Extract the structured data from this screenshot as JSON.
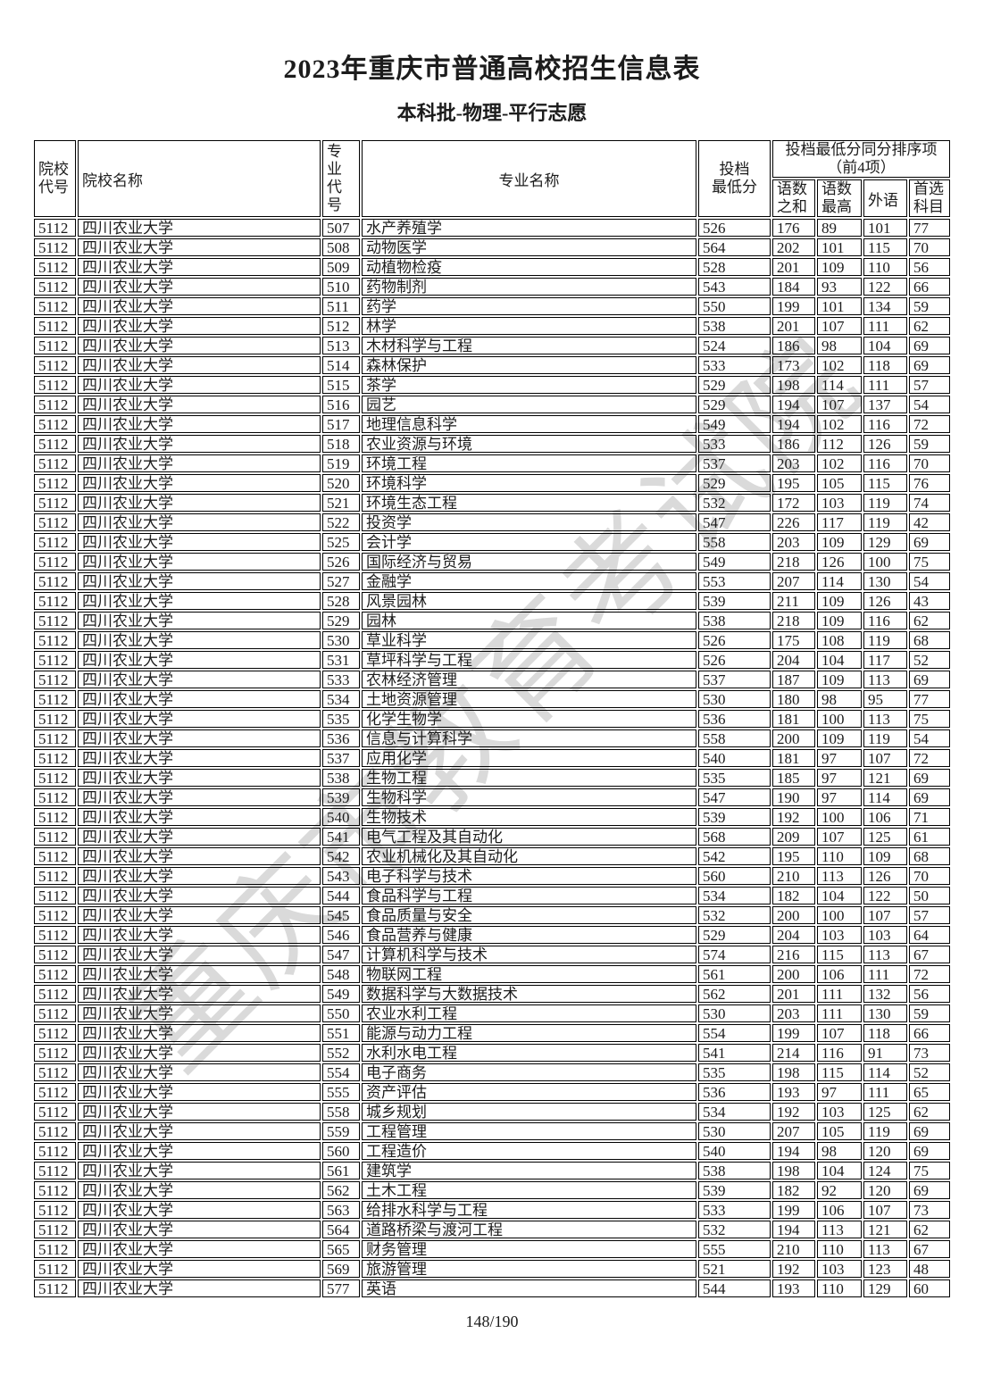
{
  "page": {
    "title": "2023年重庆市普通高校招生信息表",
    "subtitle": "本科批-物理-平行志愿",
    "watermark": "重庆市教育考试院",
    "page_number": "148/190",
    "text_color": "#1c1c1c",
    "border_color": "#000000",
    "watermark_color": "#bcbcbc"
  },
  "table": {
    "headers": {
      "college_code": "院校\n代号",
      "college_name": "院校名称",
      "major_code": "专业\n代号",
      "major_name": "专业名称",
      "min_score": "投档\n最低分",
      "tiebreak_group": "投档最低分同分排序项\n（前4项）",
      "chinese_math_sum": "语数\n之和",
      "chinese_math_max": "语数\n最高",
      "foreign_language": "外语",
      "first_subject": "首选\n科目"
    },
    "rows": [
      [
        "5112",
        "四川农业大学",
        "507",
        "水产养殖学",
        "526",
        "176",
        "89",
        "101",
        "77"
      ],
      [
        "5112",
        "四川农业大学",
        "508",
        "动物医学",
        "564",
        "202",
        "101",
        "115",
        "70"
      ],
      [
        "5112",
        "四川农业大学",
        "509",
        "动植物检疫",
        "528",
        "201",
        "109",
        "110",
        "56"
      ],
      [
        "5112",
        "四川农业大学",
        "510",
        "药物制剂",
        "543",
        "184",
        "93",
        "122",
        "66"
      ],
      [
        "5112",
        "四川农业大学",
        "511",
        "药学",
        "550",
        "199",
        "101",
        "134",
        "59"
      ],
      [
        "5112",
        "四川农业大学",
        "512",
        "林学",
        "538",
        "201",
        "107",
        "111",
        "62"
      ],
      [
        "5112",
        "四川农业大学",
        "513",
        "木材科学与工程",
        "524",
        "186",
        "98",
        "104",
        "69"
      ],
      [
        "5112",
        "四川农业大学",
        "514",
        "森林保护",
        "533",
        "173",
        "102",
        "118",
        "69"
      ],
      [
        "5112",
        "四川农业大学",
        "515",
        "茶学",
        "529",
        "198",
        "114",
        "111",
        "57"
      ],
      [
        "5112",
        "四川农业大学",
        "516",
        "园艺",
        "529",
        "194",
        "107",
        "137",
        "54"
      ],
      [
        "5112",
        "四川农业大学",
        "517",
        "地理信息科学",
        "549",
        "194",
        "102",
        "116",
        "72"
      ],
      [
        "5112",
        "四川农业大学",
        "518",
        "农业资源与环境",
        "533",
        "186",
        "112",
        "126",
        "59"
      ],
      [
        "5112",
        "四川农业大学",
        "519",
        "环境工程",
        "537",
        "203",
        "102",
        "116",
        "70"
      ],
      [
        "5112",
        "四川农业大学",
        "520",
        "环境科学",
        "529",
        "195",
        "105",
        "115",
        "76"
      ],
      [
        "5112",
        "四川农业大学",
        "521",
        "环境生态工程",
        "532",
        "172",
        "103",
        "119",
        "74"
      ],
      [
        "5112",
        "四川农业大学",
        "522",
        "投资学",
        "547",
        "226",
        "117",
        "119",
        "42"
      ],
      [
        "5112",
        "四川农业大学",
        "525",
        "会计学",
        "558",
        "203",
        "109",
        "129",
        "69"
      ],
      [
        "5112",
        "四川农业大学",
        "526",
        "国际经济与贸易",
        "549",
        "218",
        "126",
        "100",
        "75"
      ],
      [
        "5112",
        "四川农业大学",
        "527",
        "金融学",
        "553",
        "207",
        "114",
        "130",
        "54"
      ],
      [
        "5112",
        "四川农业大学",
        "528",
        "风景园林",
        "539",
        "211",
        "109",
        "126",
        "43"
      ],
      [
        "5112",
        "四川农业大学",
        "529",
        "园林",
        "538",
        "218",
        "109",
        "116",
        "62"
      ],
      [
        "5112",
        "四川农业大学",
        "530",
        "草业科学",
        "526",
        "175",
        "108",
        "119",
        "68"
      ],
      [
        "5112",
        "四川农业大学",
        "531",
        "草坪科学与工程",
        "526",
        "204",
        "104",
        "117",
        "52"
      ],
      [
        "5112",
        "四川农业大学",
        "533",
        "农林经济管理",
        "537",
        "187",
        "109",
        "113",
        "69"
      ],
      [
        "5112",
        "四川农业大学",
        "534",
        "土地资源管理",
        "530",
        "180",
        "98",
        "95",
        "77"
      ],
      [
        "5112",
        "四川农业大学",
        "535",
        "化学生物学",
        "536",
        "181",
        "100",
        "113",
        "75"
      ],
      [
        "5112",
        "四川农业大学",
        "536",
        "信息与计算科学",
        "558",
        "200",
        "109",
        "119",
        "54"
      ],
      [
        "5112",
        "四川农业大学",
        "537",
        "应用化学",
        "540",
        "181",
        "97",
        "107",
        "72"
      ],
      [
        "5112",
        "四川农业大学",
        "538",
        "生物工程",
        "535",
        "185",
        "97",
        "121",
        "69"
      ],
      [
        "5112",
        "四川农业大学",
        "539",
        "生物科学",
        "547",
        "190",
        "97",
        "114",
        "69"
      ],
      [
        "5112",
        "四川农业大学",
        "540",
        "生物技术",
        "539",
        "192",
        "100",
        "106",
        "71"
      ],
      [
        "5112",
        "四川农业大学",
        "541",
        "电气工程及其自动化",
        "568",
        "209",
        "107",
        "125",
        "61"
      ],
      [
        "5112",
        "四川农业大学",
        "542",
        "农业机械化及其自动化",
        "542",
        "195",
        "110",
        "109",
        "68"
      ],
      [
        "5112",
        "四川农业大学",
        "543",
        "电子科学与技术",
        "560",
        "210",
        "113",
        "126",
        "70"
      ],
      [
        "5112",
        "四川农业大学",
        "544",
        "食品科学与工程",
        "534",
        "182",
        "104",
        "122",
        "50"
      ],
      [
        "5112",
        "四川农业大学",
        "545",
        "食品质量与安全",
        "532",
        "200",
        "100",
        "107",
        "57"
      ],
      [
        "5112",
        "四川农业大学",
        "546",
        "食品营养与健康",
        "529",
        "204",
        "103",
        "103",
        "64"
      ],
      [
        "5112",
        "四川农业大学",
        "547",
        "计算机科学与技术",
        "574",
        "216",
        "115",
        "113",
        "67"
      ],
      [
        "5112",
        "四川农业大学",
        "548",
        "物联网工程",
        "561",
        "200",
        "106",
        "111",
        "72"
      ],
      [
        "5112",
        "四川农业大学",
        "549",
        "数据科学与大数据技术",
        "562",
        "201",
        "111",
        "132",
        "56"
      ],
      [
        "5112",
        "四川农业大学",
        "550",
        "农业水利工程",
        "530",
        "203",
        "111",
        "130",
        "59"
      ],
      [
        "5112",
        "四川农业大学",
        "551",
        "能源与动力工程",
        "554",
        "199",
        "107",
        "118",
        "66"
      ],
      [
        "5112",
        "四川农业大学",
        "552",
        "水利水电工程",
        "541",
        "214",
        "116",
        "91",
        "73"
      ],
      [
        "5112",
        "四川农业大学",
        "554",
        "电子商务",
        "535",
        "198",
        "115",
        "114",
        "52"
      ],
      [
        "5112",
        "四川农业大学",
        "555",
        "资产评估",
        "536",
        "193",
        "97",
        "111",
        "65"
      ],
      [
        "5112",
        "四川农业大学",
        "558",
        "城乡规划",
        "534",
        "192",
        "103",
        "125",
        "62"
      ],
      [
        "5112",
        "四川农业大学",
        "559",
        "工程管理",
        "530",
        "207",
        "105",
        "119",
        "69"
      ],
      [
        "5112",
        "四川农业大学",
        "560",
        "工程造价",
        "540",
        "194",
        "98",
        "120",
        "69"
      ],
      [
        "5112",
        "四川农业大学",
        "561",
        "建筑学",
        "538",
        "198",
        "104",
        "124",
        "75"
      ],
      [
        "5112",
        "四川农业大学",
        "562",
        "土木工程",
        "539",
        "182",
        "92",
        "120",
        "69"
      ],
      [
        "5112",
        "四川农业大学",
        "563",
        "给排水科学与工程",
        "533",
        "199",
        "106",
        "107",
        "73"
      ],
      [
        "5112",
        "四川农业大学",
        "564",
        "道路桥梁与渡河工程",
        "532",
        "194",
        "113",
        "121",
        "62"
      ],
      [
        "5112",
        "四川农业大学",
        "565",
        "财务管理",
        "555",
        "210",
        "110",
        "113",
        "67"
      ],
      [
        "5112",
        "四川农业大学",
        "569",
        "旅游管理",
        "521",
        "192",
        "103",
        "123",
        "48"
      ],
      [
        "5112",
        "四川农业大学",
        "577",
        "英语",
        "544",
        "193",
        "110",
        "129",
        "60"
      ]
    ]
  }
}
